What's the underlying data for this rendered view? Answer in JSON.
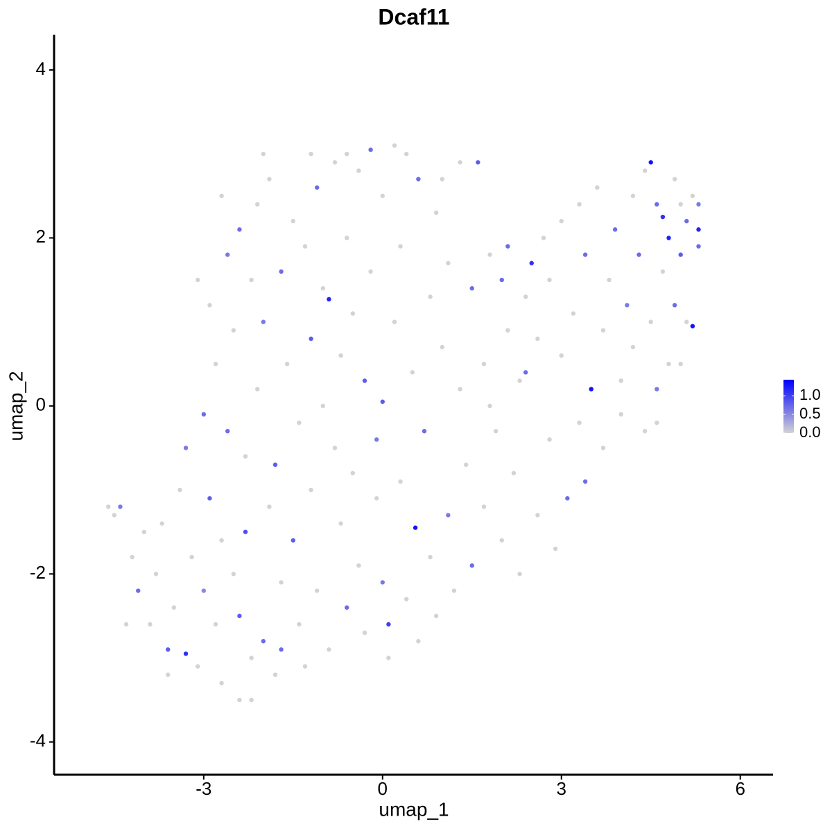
{
  "chart_data": {
    "type": "scatter",
    "title": "Dcaf11",
    "x_label": "umap_1",
    "y_label": "umap_2",
    "xlim": [
      -5.51,
      6.55
    ],
    "ylim": [
      -4.39,
      4.42
    ],
    "xticks": [
      -3,
      0,
      3,
      6
    ],
    "yticks": [
      -4,
      -2,
      0,
      2,
      4
    ],
    "colors": [
      "#d3d3d3",
      "#0000ff"
    ],
    "colorbar": {
      "lim": [
        0,
        1.43
      ],
      "ticks": [
        {
          "value": 0,
          "label": "0.0"
        },
        {
          "value": 0.5,
          "label": "0.5"
        },
        {
          "value": 1,
          "label": "1.0"
        }
      ]
    },
    "x": [
      -4.5,
      -4.4,
      -4.2,
      -4.1,
      -4.0,
      -3.9,
      -3.8,
      -3.7,
      -3.6,
      -3.5,
      -3.4,
      -3.3,
      -3.3,
      -3.2,
      -3.1,
      -3.0,
      -3.0,
      -2.9,
      -2.9,
      -2.8,
      -2.8,
      -2.7,
      -2.7,
      -2.6,
      -2.6,
      -2.5,
      -2.5,
      -2.4,
      -2.4,
      -2.3,
      -2.3,
      -2.2,
      -2.2,
      -2.1,
      -2.1,
      -2.0,
      -2.0,
      -1.9,
      -1.9,
      -1.8,
      -1.8,
      -1.7,
      -1.7,
      -1.6,
      -1.5,
      -1.5,
      -1.4,
      -1.4,
      -1.3,
      -1.3,
      -1.2,
      -1.2,
      -1.1,
      -1.1,
      -1.0,
      -1.0,
      -0.9,
      -0.9,
      -0.8,
      -0.8,
      -0.7,
      -0.7,
      -0.6,
      -0.6,
      -0.5,
      -0.5,
      -0.4,
      -0.4,
      -0.3,
      -0.3,
      -0.2,
      -0.2,
      -0.1,
      -0.1,
      0.0,
      0.0,
      0.0,
      0.1,
      0.1,
      0.2,
      0.2,
      0.3,
      0.3,
      0.4,
      0.5,
      0.55,
      0.6,
      0.6,
      0.7,
      0.8,
      0.8,
      0.9,
      0.9,
      1.0,
      1.1,
      1.1,
      1.2,
      1.3,
      1.3,
      1.4,
      1.5,
      1.5,
      1.6,
      1.7,
      1.7,
      1.8,
      1.9,
      2.0,
      2.0,
      2.1,
      2.1,
      2.2,
      2.3,
      2.3,
      2.4,
      2.4,
      2.5,
      2.6,
      2.6,
      2.7,
      2.8,
      2.8,
      2.9,
      3.0,
      3.0,
      3.1,
      3.2,
      3.3,
      3.3,
      3.4,
      3.4,
      3.5,
      3.6,
      3.7,
      3.7,
      3.8,
      3.9,
      4.0,
      4.0,
      4.1,
      4.2,
      4.2,
      4.3,
      4.4,
      4.4,
      4.5,
      4.5,
      4.6,
      4.6,
      4.7,
      4.7,
      4.8,
      4.8,
      4.9,
      4.9,
      5.0,
      5.0,
      5.1,
      5.1,
      5.2,
      5.2,
      5.3,
      5.3,
      5.3,
      5.0,
      4.6,
      -4.6,
      -4.3,
      -3.6,
      -2.4,
      -2.2,
      -1.7,
      -3.1,
      -2.7,
      -2.0,
      -1.2,
      -0.6,
      0.4,
      1.0,
      1.8
    ],
    "y": [
      -1.3,
      -1.2,
      -1.8,
      -2.2,
      -1.5,
      -2.6,
      -2.0,
      -1.4,
      -2.9,
      -2.4,
      -1.0,
      -2.95,
      -0.5,
      -1.8,
      -3.1,
      -2.2,
      -0.1,
      -1.1,
      1.2,
      -2.6,
      0.5,
      -3.3,
      -1.6,
      1.8,
      -0.3,
      -2.0,
      0.9,
      2.1,
      -2.5,
      -1.5,
      -0.6,
      1.5,
      -3.0,
      2.4,
      0.2,
      -2.8,
      1.0,
      -1.2,
      2.7,
      -0.7,
      -3.2,
      1.6,
      -2.1,
      0.5,
      2.2,
      -1.6,
      -0.2,
      -2.6,
      1.9,
      -3.1,
      0.8,
      -1.0,
      2.6,
      -2.2,
      0.0,
      1.4,
      1.27,
      -2.9,
      -0.5,
      2.9,
      -1.4,
      0.6,
      2.0,
      -2.4,
      -0.8,
      1.1,
      2.8,
      -1.9,
      0.3,
      -2.7,
      3.05,
      1.6,
      -0.4,
      -1.1,
      0.05,
      2.5,
      -2.1,
      -2.6,
      -3.0,
      1.0,
      3.1,
      -0.9,
      1.9,
      -2.3,
      0.4,
      -1.45,
      2.7,
      -2.8,
      -0.3,
      1.3,
      -1.8,
      2.3,
      -2.5,
      0.7,
      -1.3,
      1.7,
      -2.2,
      0.2,
      2.9,
      -0.7,
      1.4,
      -1.9,
      2.9,
      0.5,
      -1.2,
      1.8,
      -0.3,
      -1.6,
      1.5,
      0.9,
      1.9,
      -0.8,
      -2.0,
      0.3,
      1.3,
      0.4,
      1.7,
      -1.3,
      0.8,
      2.0,
      -0.4,
      1.5,
      -1.7,
      0.6,
      2.2,
      -1.1,
      1.1,
      -0.2,
      2.4,
      -0.9,
      1.8,
      0.2,
      2.6,
      0.9,
      -0.5,
      1.5,
      2.1,
      0.3,
      -0.1,
      1.2,
      2.5,
      0.7,
      1.8,
      -0.3,
      2.8,
      2.9,
      1.0,
      2.4,
      0.2,
      2.25,
      1.6,
      2.0,
      0.5,
      2.7,
      1.2,
      1.8,
      2.4,
      1.0,
      2.2,
      0.95,
      2.5,
      2.1,
      1.9,
      2.4,
      0.5,
      -0.2,
      -1.2,
      -2.6,
      -3.2,
      -3.5,
      -3.5,
      -2.9,
      1.5,
      2.5,
      3.0,
      3.0,
      3.0,
      3.0,
      2.7,
      0.0
    ],
    "values": [
      0,
      0.6,
      0,
      0.7,
      0,
      0,
      0,
      0,
      0.8,
      0,
      0,
      1.1,
      0.6,
      0,
      0,
      0.5,
      0.7,
      0.8,
      0,
      0,
      0,
      0,
      0,
      0.6,
      0.7,
      0,
      0,
      0.7,
      0.8,
      0.9,
      0,
      0,
      0,
      0,
      0,
      0.7,
      0.6,
      0,
      0,
      0.8,
      0,
      0.7,
      0,
      0,
      0,
      0.8,
      0,
      0,
      0,
      0,
      0.8,
      0,
      0.7,
      0,
      0,
      0,
      1.2,
      0,
      0,
      0,
      0,
      0,
      0,
      0.7,
      0,
      0,
      0,
      0,
      0.8,
      0,
      0.7,
      0,
      0.6,
      0,
      0.8,
      0,
      0.6,
      1.0,
      0,
      0,
      0,
      0,
      0,
      0,
      0,
      1.3,
      0.7,
      0,
      0.7,
      0,
      0,
      0,
      0,
      0,
      0.6,
      0,
      0,
      0,
      0,
      0,
      0.7,
      0.7,
      0.8,
      0,
      0,
      0,
      0,
      0,
      0.7,
      0,
      0.7,
      0,
      0,
      0,
      0,
      0.7,
      1.1,
      0,
      0,
      0,
      0,
      0,
      0,
      0,
      0,
      0.7,
      0,
      0,
      0,
      0.7,
      0.7,
      1.3,
      0,
      0,
      0,
      0,
      0.7,
      0,
      0,
      0.6,
      0,
      0,
      0.7,
      0,
      0,
      1.3,
      0,
      0.7,
      0.6,
      1.1,
      0,
      1.2,
      0,
      0,
      0.7,
      0.8,
      0,
      0,
      0.7,
      1.3,
      0,
      1.2,
      0.7,
      0.6,
      0,
      0,
      0,
      0,
      0,
      0,
      0,
      0.7,
      0,
      0,
      0,
      0,
      0,
      0,
      0,
      0
    ]
  }
}
